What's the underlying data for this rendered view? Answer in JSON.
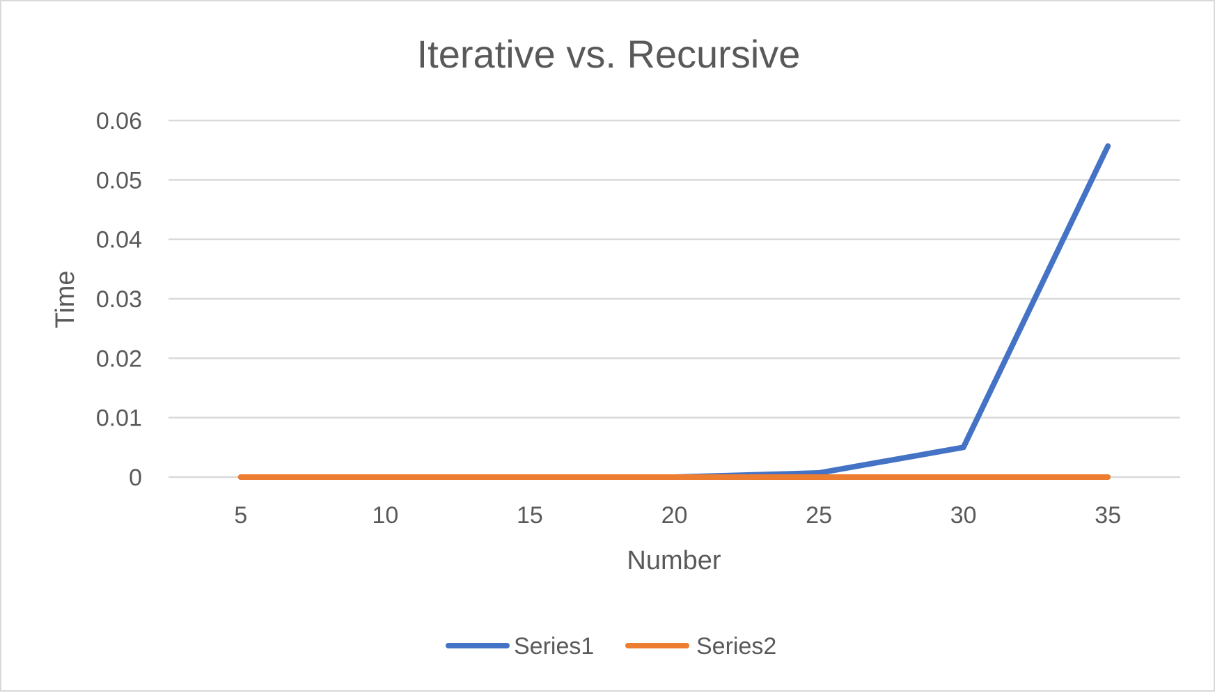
{
  "chart_data": {
    "type": "line",
    "title": "Iterative vs. Recursive",
    "xlabel": "Number",
    "ylabel": "Time",
    "categories": [
      "5",
      "10",
      "15",
      "20",
      "25",
      "30",
      "35"
    ],
    "y_ticks": [
      "0",
      "0.01",
      "0.02",
      "0.03",
      "0.04",
      "0.05",
      "0.06"
    ],
    "ylim": [
      0,
      0.06
    ],
    "grid": true,
    "legend_position": "bottom",
    "series": [
      {
        "name": "Series1",
        "color": "#4472c4",
        "values": [
          0,
          0,
          0,
          0,
          0.0007,
          0.005,
          0.0557
        ]
      },
      {
        "name": "Series2",
        "color": "#ed7d31",
        "values": [
          0,
          0,
          0,
          0,
          0,
          0,
          0
        ]
      }
    ]
  }
}
